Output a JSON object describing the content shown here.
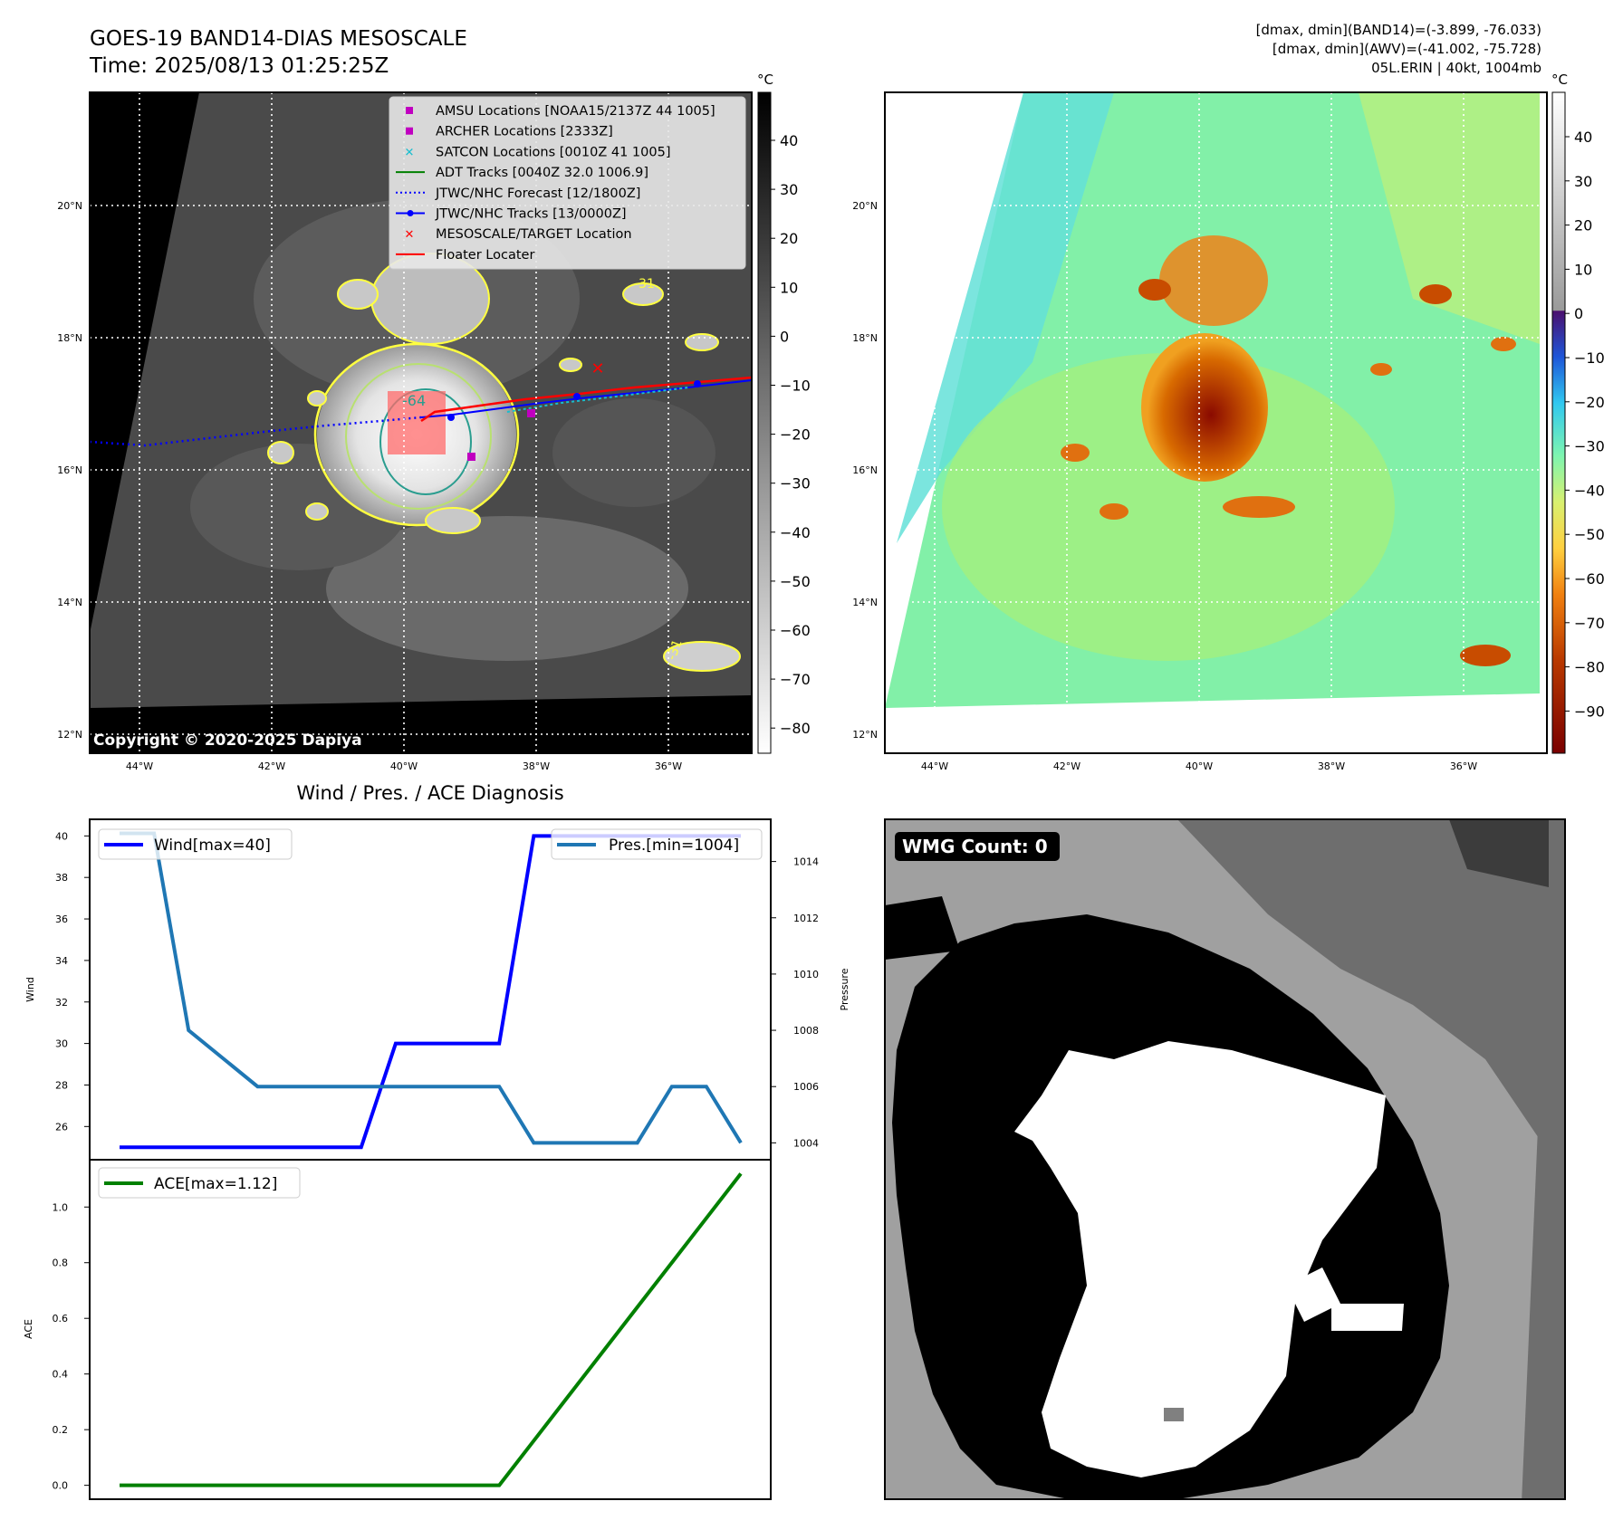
{
  "header": {
    "title_line1": "GOES-19 BAND14-DIAS MESOSCALE",
    "title_line2": "Time: 2025/08/13 01:25:25Z",
    "info_line1": "[dmax, dmin](BAND14)=(-3.899, -76.033)",
    "info_line2": "[dmax, dmin](AWV)=(-41.002, -75.728)",
    "info_line3": "05L.ERIN | 40kt, 1004mb"
  },
  "maps": {
    "lat_ticks": [
      "20°N",
      "18°N",
      "16°N",
      "14°N",
      "12°N"
    ],
    "lon_ticks": [
      "44°W",
      "42°W",
      "40°W",
      "38°W",
      "36°W"
    ],
    "copyright": "Copyright © 2020-2025 Dapiya",
    "contour_labels": [
      "-31",
      "-64",
      "-31",
      "-31",
      "-31"
    ],
    "legend": [
      {
        "label": "AMSU Locations [NOAA15/2137Z 44 1005]",
        "marker": "square",
        "color": "#c000c0"
      },
      {
        "label": "ARCHER Locations [2333Z]",
        "marker": "square",
        "color": "#c000c0"
      },
      {
        "label": "SATCON Locations [0010Z 41 1005]",
        "marker": "x",
        "color": "#17becf"
      },
      {
        "label": "ADT Tracks [0040Z 32.0 1006.9]",
        "marker": "line",
        "color": "#008000"
      },
      {
        "label": "JTWC/NHC Forecast [12/1800Z]",
        "marker": "dotted",
        "color": "#0000ff"
      },
      {
        "label": "JTWC/NHC Tracks [13/0000Z]",
        "marker": "line-dot",
        "color": "#0000ff"
      },
      {
        "label": "MESOSCALE/TARGET Location",
        "marker": "x",
        "color": "#ff0000"
      },
      {
        "label": "Floater Locater",
        "marker": "line",
        "color": "#ff0000"
      }
    ],
    "gray_colorbar": {
      "unit": "°C",
      "ticks": [
        "40",
        "30",
        "20",
        "10",
        "0",
        "−10",
        "−20",
        "−30",
        "−40",
        "−50",
        "−60",
        "−70",
        "−80"
      ]
    },
    "color_colorbar": {
      "unit": "°C",
      "ticks": [
        "40",
        "30",
        "20",
        "10",
        "0",
        "−10",
        "−20",
        "−30",
        "−40",
        "−50",
        "−60",
        "−70",
        "−80",
        "−90"
      ]
    }
  },
  "diagnosis": {
    "title": "Wind / Pres. / ACE Diagnosis"
  },
  "wmg": {
    "label": "WMG Count: 0"
  },
  "chart_data": [
    {
      "type": "line",
      "title": "Wind / Pres. / ACE Diagnosis",
      "x": [
        0,
        1,
        2,
        3,
        4,
        5,
        6,
        7,
        8,
        9,
        10,
        11,
        12,
        13,
        14,
        15,
        16,
        17,
        18
      ],
      "series": [
        {
          "name": "Wind[max=40]",
          "axis": "left",
          "ylabel": "Wind",
          "color": "#0000ff",
          "values": [
            25,
            25,
            25,
            25,
            25,
            25,
            25,
            25,
            30,
            30,
            30,
            30,
            40,
            40,
            40,
            40,
            40,
            40,
            40
          ]
        },
        {
          "name": "Pres.[min=1004]",
          "axis": "right",
          "ylabel": "Pressure",
          "color": "#1f77b4",
          "values": [
            1015,
            1015,
            1008,
            1007,
            1006,
            1006,
            1006,
            1006,
            1006,
            1006,
            1006,
            1006,
            1004,
            1004,
            1004,
            1004,
            1006,
            1006,
            1004
          ]
        }
      ],
      "left_ticks": [
        26,
        28,
        30,
        32,
        34,
        36,
        38,
        40
      ],
      "left_ylim": [
        24.4,
        40.8
      ],
      "right_ticks": [
        1004,
        1006,
        1008,
        1010,
        1012,
        1014
      ],
      "right_ylim": [
        1003.4,
        1015.5
      ]
    },
    {
      "type": "line",
      "x": [
        0,
        1,
        2,
        3,
        4,
        5,
        6,
        7,
        8,
        9,
        10,
        11,
        12,
        13,
        14,
        15,
        16,
        17,
        18
      ],
      "series": [
        {
          "name": "ACE[max=1.12]",
          "ylabel": "ACE",
          "color": "#008000",
          "values": [
            0,
            0,
            0,
            0,
            0,
            0,
            0,
            0,
            0,
            0,
            0,
            0,
            0.16,
            0.32,
            0.48,
            0.64,
            0.8,
            0.96,
            1.12
          ]
        }
      ],
      "ticks": [
        0.0,
        0.2,
        0.4,
        0.6,
        0.8,
        1.0
      ],
      "ylim": [
        -0.05,
        1.17
      ]
    }
  ]
}
